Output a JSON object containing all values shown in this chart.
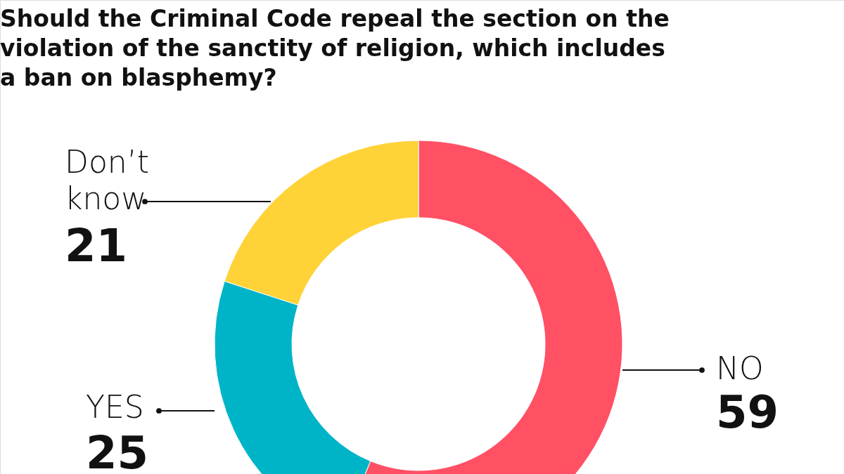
{
  "chart_data": {
    "type": "donut",
    "title": "Should the Criminal Code repeal the section on the violation of the sanctity of religion, which includes a ban on blasphemy?",
    "categories": [
      "NO",
      "YES",
      "Don’t know"
    ],
    "values": [
      59,
      25,
      21
    ],
    "colors": [
      "#ff5064",
      "#00b4c8",
      "#ffd237"
    ],
    "data_labels": true
  }
}
